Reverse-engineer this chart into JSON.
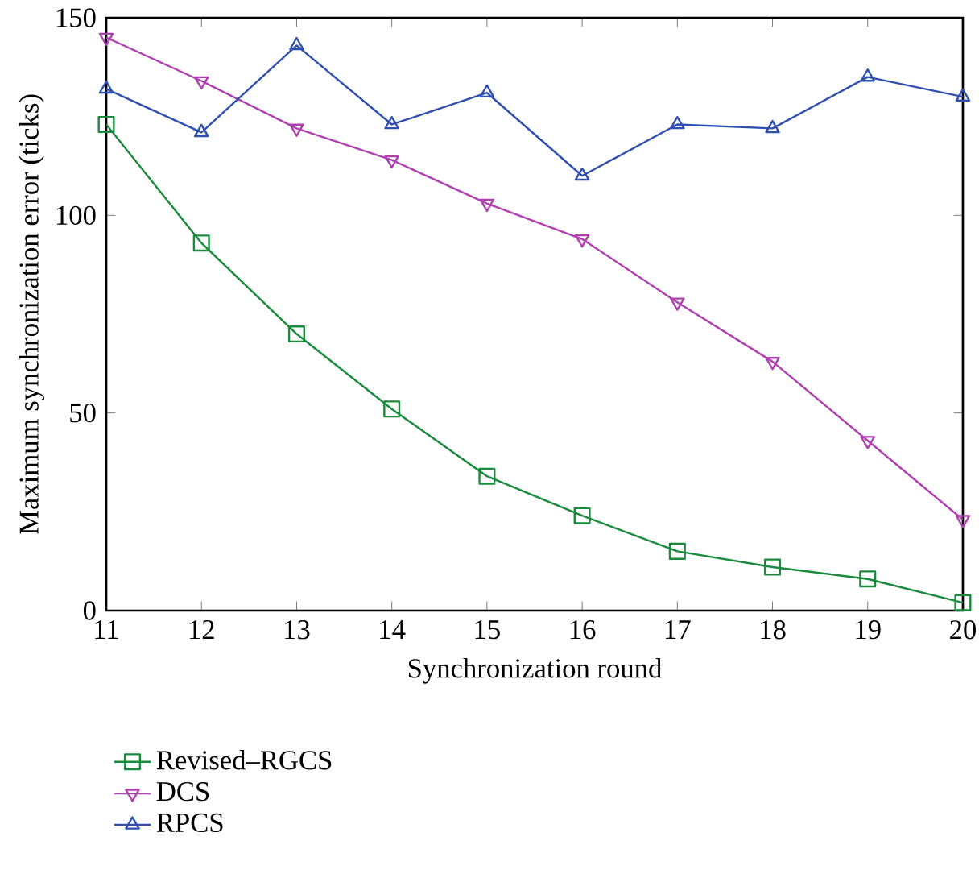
{
  "chart_data": {
    "type": "line",
    "xlabel": "Synchronization round",
    "ylabel": "Maximum synchronization error (ticks)",
    "x": [
      11,
      12,
      13,
      14,
      15,
      16,
      17,
      18,
      19,
      20
    ],
    "series": [
      {
        "name": "Revised–RGCS",
        "color": "#1a8a3c",
        "marker": "square",
        "values": [
          123,
          93,
          70,
          51,
          34,
          24,
          15,
          11,
          8,
          2
        ]
      },
      {
        "name": "DCS",
        "color": "#b040b0",
        "marker": "triangle-down",
        "values": [
          145,
          134,
          122,
          114,
          103,
          94,
          78,
          63,
          43,
          23
        ]
      },
      {
        "name": "RPCS",
        "color": "#3050b0",
        "marker": "triangle",
        "values": [
          132,
          121,
          143,
          123,
          131,
          110,
          123,
          122,
          135,
          130
        ]
      }
    ],
    "xlim": [
      11,
      20
    ],
    "xticks": [
      11,
      12,
      13,
      14,
      15,
      16,
      17,
      18,
      19,
      20
    ],
    "ylim": [
      0,
      150
    ],
    "yticks": [
      0,
      50,
      100,
      150
    ],
    "grid": false,
    "legend": "bottom",
    "line_style": "solid"
  }
}
